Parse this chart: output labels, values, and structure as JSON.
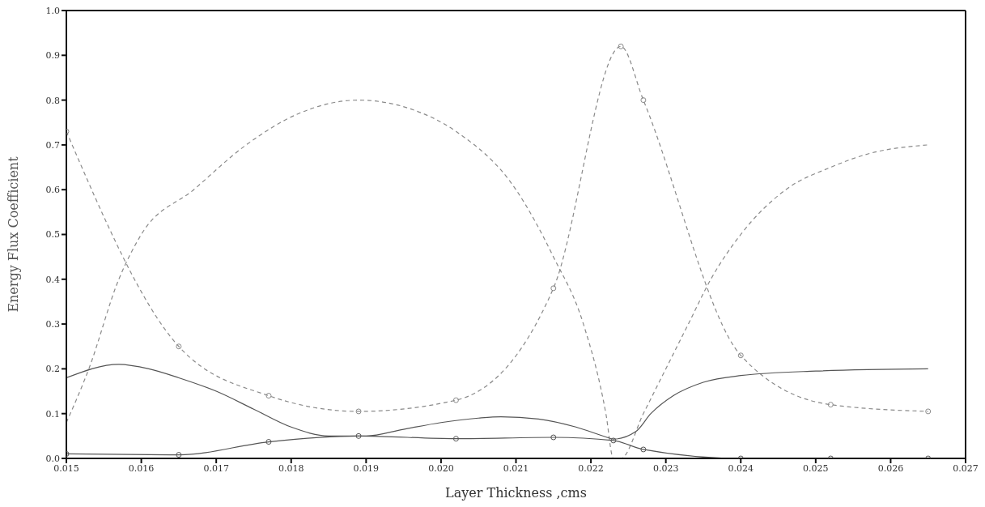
{
  "chart_data": {
    "type": "line",
    "xlabel": "Layer Thickness ,cms",
    "ylabel": "Energy Flux Coefficient",
    "xlim": [
      0.015,
      0.027
    ],
    "xticks": [
      {
        "value": 0.015,
        "label": "0.015"
      },
      {
        "value": 0.016,
        "label": "0.016"
      },
      {
        "value": 0.017,
        "label": "0.017"
      },
      {
        "value": 0.018,
        "label": "0.018"
      },
      {
        "value": 0.019,
        "label": "0.019"
      },
      {
        "value": 0.02,
        "label": "0.020"
      },
      {
        "value": 0.021,
        "label": "0.021"
      },
      {
        "value": 0.022,
        "label": "0.022"
      },
      {
        "value": 0.023,
        "label": "0.023"
      },
      {
        "value": 0.024,
        "label": "0.024"
      },
      {
        "value": 0.025,
        "label": "0.025"
      },
      {
        "value": 0.026,
        "label": "0.026"
      },
      {
        "value": 0.027,
        "label": "0.027"
      }
    ],
    "ylim": [
      0,
      1
    ],
    "yticks": [
      {
        "value": 0,
        "label": "0.0"
      },
      {
        "value": 0.1,
        "label": "0.1"
      },
      {
        "value": 0.2,
        "label": "0.2"
      },
      {
        "value": 0.3,
        "label": "0.3"
      },
      {
        "value": 0.4,
        "label": "0.4"
      },
      {
        "value": 0.5,
        "label": "0.5"
      },
      {
        "value": 0.6,
        "label": "0.6"
      },
      {
        "value": 0.7,
        "label": "0.7"
      },
      {
        "value": 0.8,
        "label": "0.8"
      },
      {
        "value": 0.9,
        "label": "0.9"
      },
      {
        "value": 1,
        "label": "1.0"
      }
    ],
    "series": [
      {
        "color": "#8a8a8a",
        "line_style": "dashed",
        "marker": "circle",
        "x": [
          0.015,
          0.0165,
          0.0177,
          0.0189,
          0.0202,
          0.0215,
          0.0224,
          0.0227,
          0.024,
          0.0252,
          0.0265
        ],
        "values": [
          0.73,
          0.25,
          0.14,
          0.105,
          0.13,
          0.38,
          0.92,
          0.8,
          0.23,
          0.12,
          0.105
        ]
      },
      {
        "color": "#8a8a8a",
        "line_style": "dashed",
        "marker": "none",
        "x": [
          0.015,
          0.0153,
          0.0157,
          0.016,
          0.0167,
          0.0174,
          0.0181,
          0.0189,
          0.0196,
          0.0202,
          0.021,
          0.0215,
          0.0219,
          0.0222,
          0.0223,
          0.0224,
          0.0227,
          0.0233,
          0.0236,
          0.024,
          0.0246,
          0.0252,
          0.0257,
          0.0265
        ],
        "values": [
          0.08,
          0.2,
          0.4,
          0.5,
          0.6,
          0.7,
          0.77,
          0.8,
          0.78,
          0.73,
          0.6,
          0.45,
          0.3,
          0.1,
          0.0,
          0.0,
          0.1,
          0.3,
          0.4,
          0.5,
          0.6,
          0.65,
          0.68,
          0.7
        ]
      },
      {
        "color": "#555555",
        "line_style": "solid",
        "marker": "none",
        "x": [
          0.015,
          0.0157,
          0.0161,
          0.0165,
          0.017,
          0.0175,
          0.018,
          0.0185,
          0.019,
          0.0195,
          0.02,
          0.0205,
          0.0208,
          0.0213,
          0.0218,
          0.0222,
          0.0223,
          0.0226,
          0.0228,
          0.0231,
          0.0235,
          0.024,
          0.025,
          0.0265
        ],
        "values": [
          0.18,
          0.21,
          0.2,
          0.18,
          0.15,
          0.11,
          0.07,
          0.05,
          0.05,
          0.065,
          0.08,
          0.09,
          0.093,
          0.088,
          0.07,
          0.048,
          0.043,
          0.06,
          0.1,
          0.14,
          0.17,
          0.185,
          0.195,
          0.2
        ]
      },
      {
        "color": "#555555",
        "line_style": "solid",
        "marker": "circle",
        "x": [
          0.015,
          0.0165,
          0.0177,
          0.0189,
          0.0202,
          0.0215,
          0.0223,
          0.0227,
          0.024,
          0.0252,
          0.0265
        ],
        "values": [
          0.01,
          0.008,
          0.037,
          0.05,
          0.044,
          0.047,
          0.04,
          0.02,
          0.0,
          0.0,
          0.0
        ]
      }
    ]
  }
}
